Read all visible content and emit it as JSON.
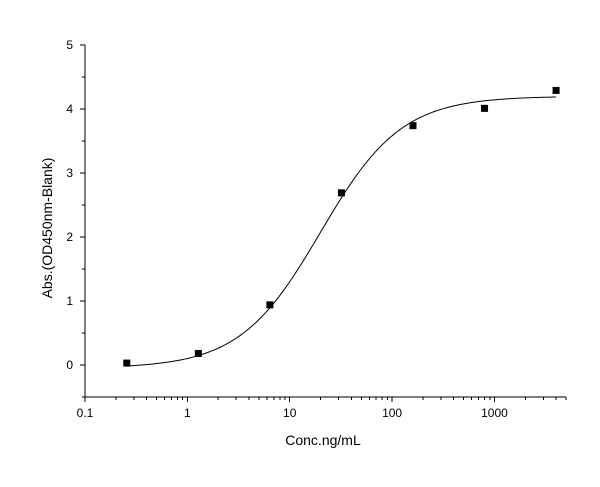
{
  "chart_data": {
    "type": "scatter",
    "title": "",
    "xlabel": "Conc.ng/mL",
    "ylabel": "Abs.(OD450nm-Blank)",
    "x_scale": "log",
    "xlim": [
      0.1,
      5000
    ],
    "ylim": [
      -0.5,
      5
    ],
    "x_ticks": [
      0.1,
      1,
      10,
      100,
      1000
    ],
    "x_tick_labels": [
      "0.1",
      "1",
      "10",
      "100",
      "1000"
    ],
    "y_ticks": [
      0,
      1,
      2,
      3,
      4,
      5
    ],
    "y_tick_labels": [
      "0",
      "1",
      "2",
      "3",
      "4",
      "5"
    ],
    "grid": false,
    "legend": "none",
    "marker": "square",
    "marker_color": "#000000",
    "series": [
      {
        "x": [
          0.256,
          1.28,
          6.4,
          32,
          160,
          800,
          4000
        ],
        "y": [
          0.03,
          0.18,
          0.94,
          2.69,
          3.74,
          4.01,
          4.29
        ]
      }
    ],
    "fit_curve": {
      "model": "4PL",
      "bottom": -0.05,
      "top": 4.2,
      "ec50": 20,
      "hill": 1.1,
      "x_range": [
        0.256,
        4000
      ]
    }
  }
}
